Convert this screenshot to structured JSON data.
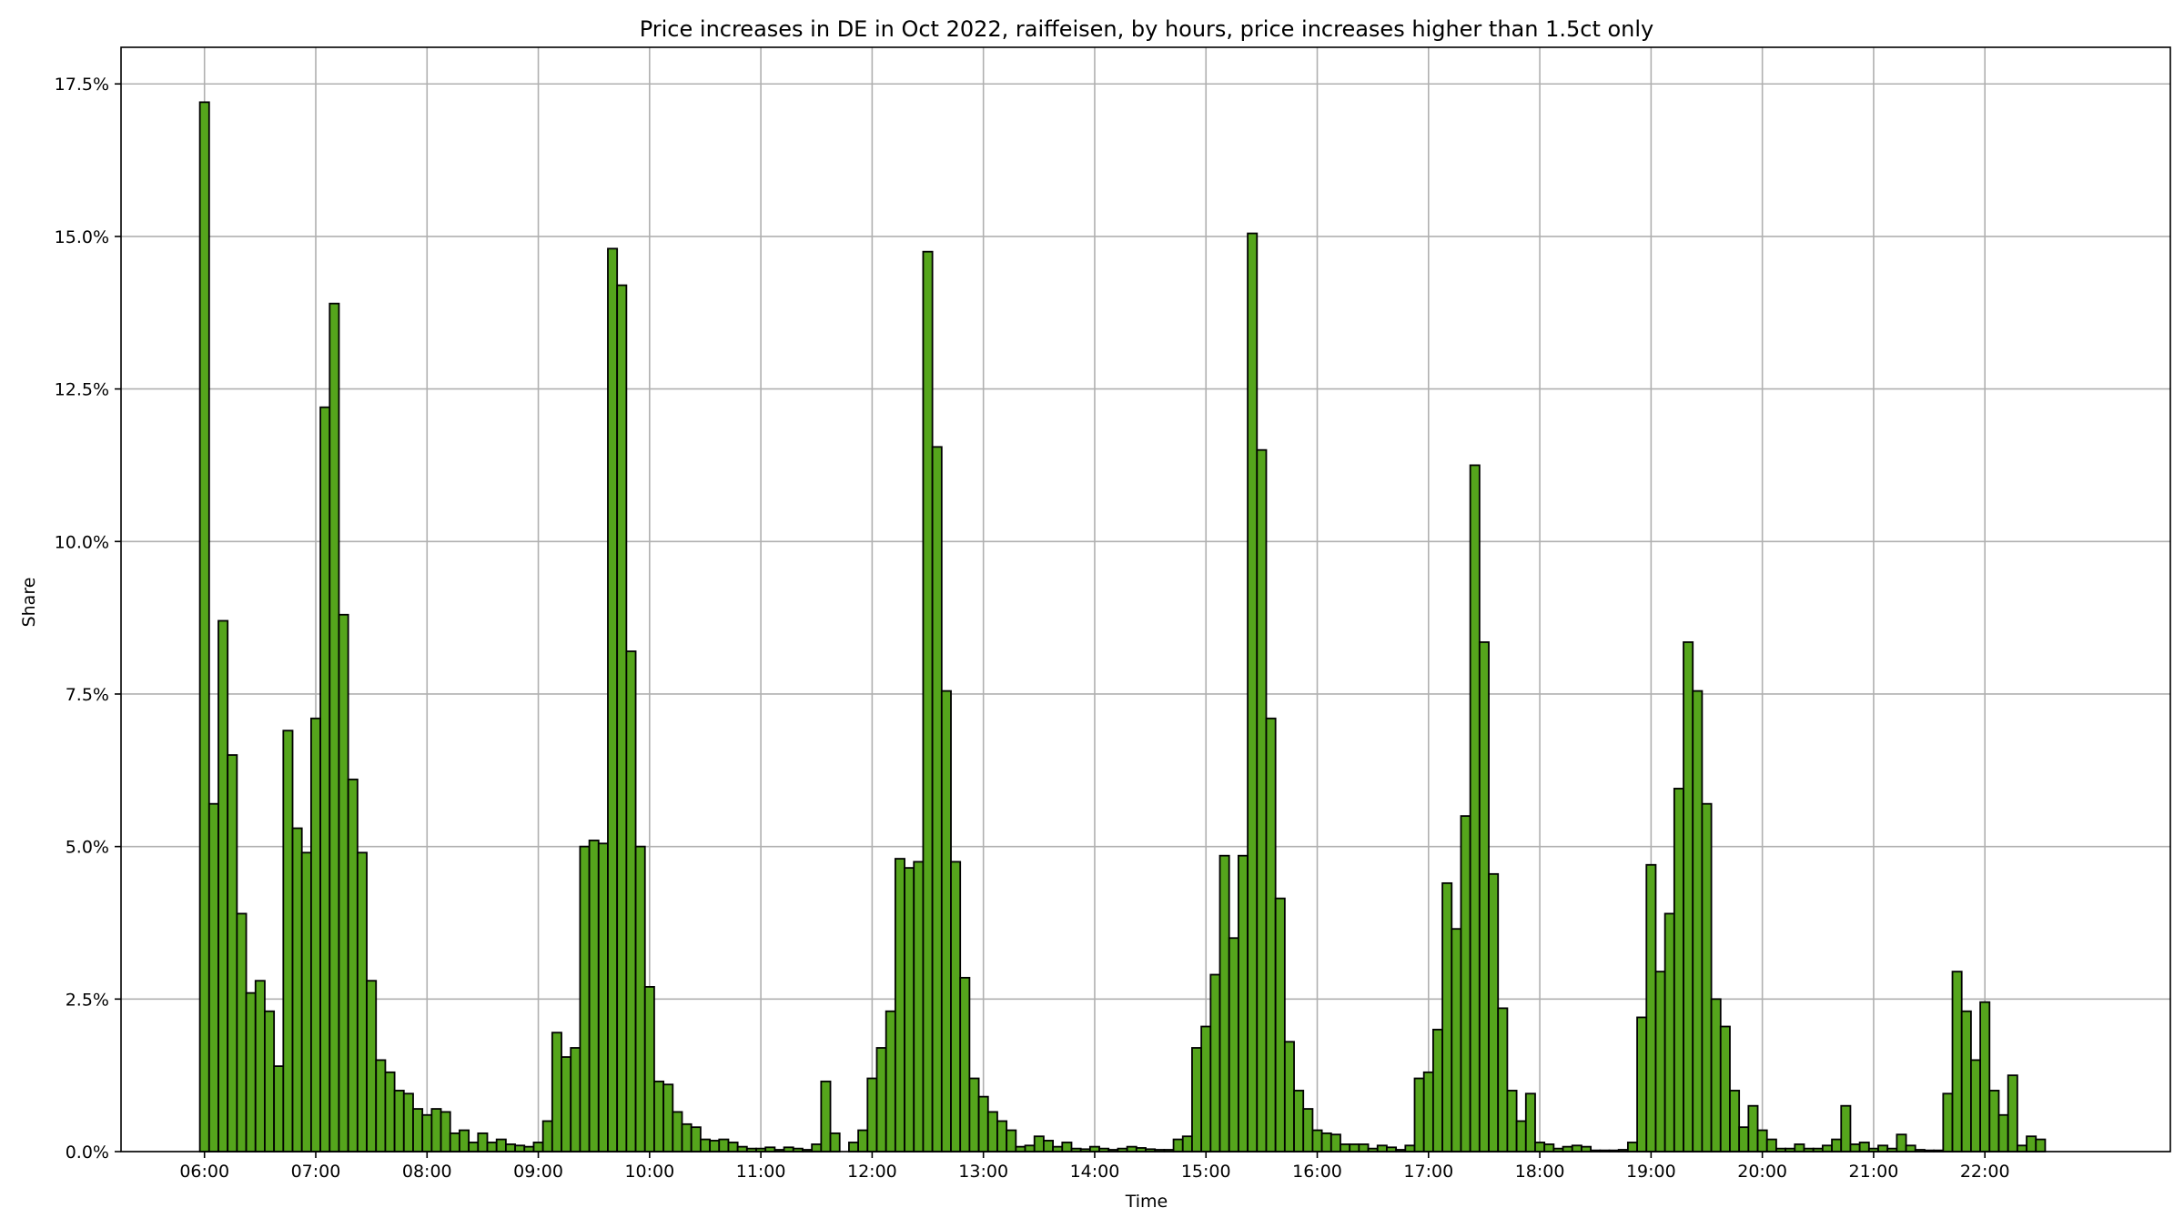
{
  "chart_data": {
    "type": "bar",
    "title": "Price increases in DE in Oct 2022, raiffeisen, by hours, price increases higher than 1.5ct only",
    "xlabel": "Time",
    "ylabel": "Share",
    "ylim": [
      0,
      18.1
    ],
    "grid": true,
    "bin_minutes": 5,
    "x_start": "06:00",
    "x_range": [
      "05:15",
      "23:40"
    ],
    "x_ticks": [
      "06:00",
      "07:00",
      "08:00",
      "09:00",
      "10:00",
      "11:00",
      "12:00",
      "13:00",
      "14:00",
      "15:00",
      "16:00",
      "17:00",
      "18:00",
      "19:00",
      "20:00",
      "21:00",
      "22:00"
    ],
    "y_ticks": [
      0,
      2.5,
      5.0,
      7.5,
      10.0,
      12.5,
      15.0,
      17.5
    ],
    "y_tick_labels": [
      "0.0%",
      "2.5%",
      "5.0%",
      "7.5%",
      "10.0%",
      "12.5%",
      "15.0%",
      "17.5%"
    ],
    "bar_color": "#55a51c",
    "edge_color": "#000000",
    "values": [
      17.2,
      5.7,
      8.7,
      6.5,
      3.9,
      2.6,
      2.8,
      2.3,
      1.4,
      6.9,
      5.3,
      4.9,
      7.1,
      12.2,
      13.9,
      8.8,
      6.1,
      4.9,
      2.8,
      1.5,
      1.3,
      1.0,
      0.95,
      0.7,
      0.6,
      0.7,
      0.65,
      0.3,
      0.35,
      0.15,
      0.3,
      0.15,
      0.2,
      0.12,
      0.1,
      0.08,
      0.15,
      0.5,
      1.95,
      1.55,
      1.7,
      5.0,
      5.1,
      5.05,
      14.8,
      14.2,
      8.2,
      5.0,
      2.7,
      1.15,
      1.1,
      0.65,
      0.45,
      0.4,
      0.2,
      0.18,
      0.2,
      0.15,
      0.08,
      0.05,
      0.05,
      0.07,
      0.03,
      0.07,
      0.05,
      0.03,
      0.12,
      1.15,
      0.3,
      0.0,
      0.15,
      0.35,
      1.2,
      1.7,
      2.3,
      4.8,
      4.65,
      4.75,
      14.75,
      11.55,
      7.55,
      4.75,
      2.85,
      1.2,
      0.9,
      0.65,
      0.5,
      0.35,
      0.08,
      0.1,
      0.25,
      0.18,
      0.08,
      0.15,
      0.05,
      0.04,
      0.08,
      0.05,
      0.03,
      0.05,
      0.08,
      0.06,
      0.04,
      0.03,
      0.03,
      0.2,
      0.25,
      1.7,
      2.05,
      2.9,
      4.85,
      3.5,
      4.85,
      15.05,
      11.5,
      7.1,
      4.15,
      1.8,
      1.0,
      0.7,
      0.35,
      0.3,
      0.28,
      0.12,
      0.12,
      0.12,
      0.05,
      0.1,
      0.07,
      0.03,
      0.1,
      1.2,
      1.3,
      2.0,
      4.4,
      3.65,
      5.5,
      11.25,
      8.35,
      4.55,
      2.35,
      1.0,
      0.5,
      0.95,
      0.15,
      0.12,
      0.05,
      0.08,
      0.1,
      0.08,
      0.02,
      0.02,
      0.02,
      0.03,
      0.15,
      2.2,
      4.7,
      2.95,
      3.9,
      5.95,
      8.35,
      7.55,
      5.7,
      2.5,
      2.05,
      1.0,
      0.4,
      0.75,
      0.35,
      0.2,
      0.05,
      0.05,
      0.12,
      0.05,
      0.05,
      0.1,
      0.2,
      0.75,
      0.12,
      0.15,
      0.05,
      0.1,
      0.05,
      0.28,
      0.1,
      0.03,
      0.02,
      0.02,
      0.95,
      2.95,
      2.3,
      1.5,
      2.45,
      1.0,
      0.6,
      1.25,
      0.1,
      0.25,
      0.2
    ]
  }
}
